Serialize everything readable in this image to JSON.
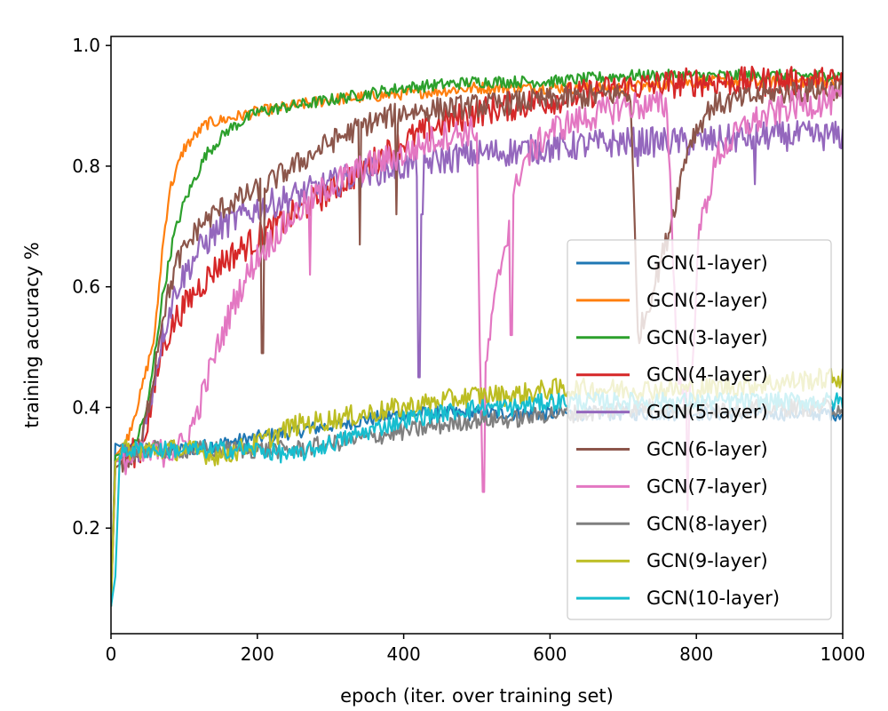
{
  "chart_data": {
    "type": "line",
    "title": "",
    "xlabel": "epoch (iter. over training set)",
    "ylabel": "training accuracy %",
    "xlim": [
      0,
      1000
    ],
    "ylim": [
      0.025,
      1.015
    ],
    "xticks": [
      0,
      200,
      400,
      600,
      800,
      1000
    ],
    "yticks": [
      0.2,
      0.4,
      0.6,
      0.8,
      1.0
    ],
    "xtick_labels": [
      "0",
      "200",
      "400",
      "600",
      "800",
      "1000"
    ],
    "ytick_labels": [
      "0.2",
      "0.4",
      "0.6",
      "0.8",
      "1.0"
    ],
    "grid": false,
    "legend_position": "lower-right",
    "series": [
      {
        "name": "GCN(1-layer)",
        "color": "#1f77b4",
        "points": [
          [
            0,
            0.08
          ],
          [
            6,
            0.34
          ],
          [
            20,
            0.33
          ],
          [
            100,
            0.33
          ],
          [
            150,
            0.34
          ],
          [
            200,
            0.35
          ],
          [
            250,
            0.36
          ],
          [
            300,
            0.37
          ],
          [
            350,
            0.38
          ],
          [
            400,
            0.39
          ],
          [
            450,
            0.39
          ],
          [
            500,
            0.39
          ],
          [
            550,
            0.39
          ],
          [
            600,
            0.39
          ],
          [
            650,
            0.39
          ],
          [
            700,
            0.39
          ],
          [
            750,
            0.39
          ],
          [
            800,
            0.39
          ],
          [
            850,
            0.39
          ],
          [
            900,
            0.39
          ],
          [
            950,
            0.39
          ],
          [
            1000,
            0.39
          ]
        ],
        "noise": 0.012
      },
      {
        "name": "GCN(2-layer)",
        "color": "#ff7f0e",
        "points": [
          [
            0,
            0.08
          ],
          [
            6,
            0.32
          ],
          [
            20,
            0.34
          ],
          [
            40,
            0.42
          ],
          [
            60,
            0.52
          ],
          [
            70,
            0.66
          ],
          [
            80,
            0.76
          ],
          [
            100,
            0.83
          ],
          [
            130,
            0.87
          ],
          [
            200,
            0.89
          ],
          [
            300,
            0.91
          ],
          [
            400,
            0.92
          ],
          [
            500,
            0.93
          ],
          [
            600,
            0.93
          ],
          [
            700,
            0.93
          ],
          [
            800,
            0.94
          ],
          [
            900,
            0.94
          ],
          [
            1000,
            0.94
          ]
        ],
        "noise": 0.01
      },
      {
        "name": "GCN(3-layer)",
        "color": "#2ca02c",
        "points": [
          [
            0,
            0.08
          ],
          [
            6,
            0.32
          ],
          [
            30,
            0.33
          ],
          [
            50,
            0.4
          ],
          [
            70,
            0.58
          ],
          [
            85,
            0.68
          ],
          [
            100,
            0.74
          ],
          [
            130,
            0.82
          ],
          [
            160,
            0.86
          ],
          [
            200,
            0.89
          ],
          [
            300,
            0.91
          ],
          [
            400,
            0.93
          ],
          [
            500,
            0.94
          ],
          [
            600,
            0.94
          ],
          [
            700,
            0.95
          ],
          [
            800,
            0.95
          ],
          [
            900,
            0.95
          ],
          [
            1000,
            0.95
          ]
        ],
        "noise": 0.01
      },
      {
        "name": "GCN(4-layer)",
        "color": "#d62728",
        "points": [
          [
            0,
            0.08
          ],
          [
            6,
            0.31
          ],
          [
            40,
            0.33
          ],
          [
            55,
            0.4
          ],
          [
            70,
            0.5
          ],
          [
            90,
            0.55
          ],
          [
            120,
            0.6
          ],
          [
            150,
            0.64
          ],
          [
            200,
            0.68
          ],
          [
            250,
            0.72
          ],
          [
            300,
            0.76
          ],
          [
            350,
            0.8
          ],
          [
            400,
            0.84
          ],
          [
            450,
            0.87
          ],
          [
            500,
            0.89
          ],
          [
            550,
            0.9
          ],
          [
            600,
            0.91
          ],
          [
            700,
            0.93
          ],
          [
            800,
            0.94
          ],
          [
            900,
            0.94
          ],
          [
            1000,
            0.94
          ]
        ],
        "noise": 0.025
      },
      {
        "name": "GCN(5-layer)",
        "color": "#9467bd",
        "points": [
          [
            0,
            0.08
          ],
          [
            6,
            0.31
          ],
          [
            40,
            0.33
          ],
          [
            55,
            0.42
          ],
          [
            70,
            0.52
          ],
          [
            90,
            0.6
          ],
          [
            120,
            0.66
          ],
          [
            150,
            0.7
          ],
          [
            200,
            0.73
          ],
          [
            250,
            0.75
          ],
          [
            300,
            0.77
          ],
          [
            350,
            0.79
          ],
          [
            400,
            0.8
          ],
          [
            450,
            0.81
          ],
          [
            500,
            0.82
          ],
          [
            600,
            0.83
          ],
          [
            700,
            0.84
          ],
          [
            800,
            0.84
          ],
          [
            900,
            0.85
          ],
          [
            1000,
            0.85
          ]
        ],
        "noise": 0.025,
        "dips": [
          [
            420,
            0.45
          ],
          [
            421,
            0.45
          ],
          [
            425,
            0.72
          ],
          [
            720,
            0.8
          ],
          [
            880,
            0.77
          ]
        ]
      },
      {
        "name": "GCN(6-layer)",
        "color": "#8c564b",
        "points": [
          [
            0,
            0.07
          ],
          [
            6,
            0.3
          ],
          [
            40,
            0.33
          ],
          [
            55,
            0.43
          ],
          [
            70,
            0.55
          ],
          [
            90,
            0.64
          ],
          [
            120,
            0.7
          ],
          [
            150,
            0.73
          ],
          [
            200,
            0.76
          ],
          [
            250,
            0.8
          ],
          [
            300,
            0.84
          ],
          [
            350,
            0.87
          ],
          [
            400,
            0.89
          ],
          [
            500,
            0.9
          ],
          [
            600,
            0.91
          ],
          [
            700,
            0.92
          ],
          [
            710,
            0.92
          ],
          [
            720,
            0.52
          ],
          [
            730,
            0.55
          ],
          [
            760,
            0.68
          ],
          [
            790,
            0.84
          ],
          [
            820,
            0.9
          ],
          [
            900,
            0.92
          ],
          [
            1000,
            0.93
          ]
        ],
        "noise": 0.02,
        "dips": [
          [
            207,
            0.49
          ],
          [
            340,
            0.67
          ],
          [
            390,
            0.72
          ]
        ]
      },
      {
        "name": "GCN(7-layer)",
        "color": "#e377c2",
        "points": [
          [
            0,
            0.08
          ],
          [
            6,
            0.31
          ],
          [
            90,
            0.33
          ],
          [
            100,
            0.34
          ],
          [
            115,
            0.38
          ],
          [
            140,
            0.48
          ],
          [
            170,
            0.58
          ],
          [
            200,
            0.65
          ],
          [
            250,
            0.72
          ],
          [
            300,
            0.77
          ],
          [
            350,
            0.8
          ],
          [
            400,
            0.82
          ],
          [
            450,
            0.85
          ],
          [
            500,
            0.86
          ],
          [
            505,
            0.4
          ],
          [
            510,
            0.45
          ],
          [
            530,
            0.62
          ],
          [
            560,
            0.8
          ],
          [
            600,
            0.86
          ],
          [
            650,
            0.88
          ],
          [
            700,
            0.9
          ],
          [
            760,
            0.9
          ],
          [
            775,
            0.45
          ],
          [
            790,
            0.4
          ],
          [
            805,
            0.7
          ],
          [
            830,
            0.82
          ],
          [
            870,
            0.87
          ],
          [
            930,
            0.9
          ],
          [
            1000,
            0.91
          ]
        ],
        "noise": 0.025,
        "dips": [
          [
            272,
            0.62
          ],
          [
            509,
            0.26
          ],
          [
            547,
            0.52
          ],
          [
            788,
            0.23
          ]
        ]
      },
      {
        "name": "GCN(8-layer)",
        "color": "#7f7f7f",
        "points": [
          [
            0,
            0.07
          ],
          [
            6,
            0.31
          ],
          [
            20,
            0.33
          ],
          [
            200,
            0.33
          ],
          [
            250,
            0.33
          ],
          [
            300,
            0.34
          ],
          [
            350,
            0.35
          ],
          [
            400,
            0.36
          ],
          [
            450,
            0.37
          ],
          [
            500,
            0.38
          ],
          [
            550,
            0.38
          ],
          [
            600,
            0.39
          ],
          [
            650,
            0.39
          ],
          [
            700,
            0.4
          ],
          [
            800,
            0.4
          ],
          [
            900,
            0.4
          ],
          [
            1000,
            0.4
          ]
        ],
        "noise": 0.015
      },
      {
        "name": "GCN(9-layer)",
        "color": "#bcbd22",
        "points": [
          [
            0,
            0.07
          ],
          [
            6,
            0.31
          ],
          [
            20,
            0.33
          ],
          [
            100,
            0.33
          ],
          [
            150,
            0.32
          ],
          [
            200,
            0.34
          ],
          [
            250,
            0.37
          ],
          [
            300,
            0.38
          ],
          [
            350,
            0.39
          ],
          [
            400,
            0.4
          ],
          [
            450,
            0.41
          ],
          [
            500,
            0.42
          ],
          [
            550,
            0.42
          ],
          [
            600,
            0.43
          ],
          [
            700,
            0.43
          ],
          [
            800,
            0.43
          ],
          [
            900,
            0.44
          ],
          [
            1000,
            0.45
          ]
        ],
        "noise": 0.018
      },
      {
        "name": "GCN(10-layer)",
        "color": "#17becf",
        "points": [
          [
            0,
            0.07
          ],
          [
            6,
            0.12
          ],
          [
            12,
            0.32
          ],
          [
            20,
            0.33
          ],
          [
            100,
            0.33
          ],
          [
            200,
            0.33
          ],
          [
            250,
            0.32
          ],
          [
            300,
            0.34
          ],
          [
            350,
            0.36
          ],
          [
            400,
            0.38
          ],
          [
            450,
            0.39
          ],
          [
            500,
            0.4
          ],
          [
            550,
            0.4
          ],
          [
            600,
            0.41
          ],
          [
            700,
            0.41
          ],
          [
            800,
            0.41
          ],
          [
            900,
            0.41
          ],
          [
            1000,
            0.41
          ]
        ],
        "noise": 0.015
      }
    ]
  }
}
